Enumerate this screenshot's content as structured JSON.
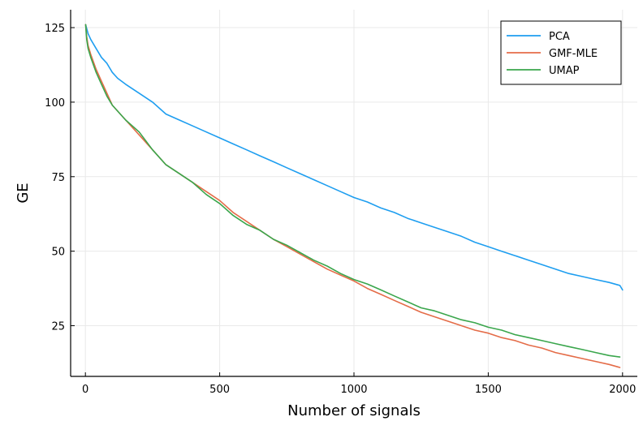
{
  "chart_data": {
    "type": "line",
    "title": "",
    "xlabel": "Number of signals",
    "ylabel": "GE",
    "xlim": [
      -55,
      2055
    ],
    "ylim": [
      8,
      131
    ],
    "xticks": [
      0,
      500,
      1000,
      1500,
      2000
    ],
    "yticks": [
      25,
      50,
      75,
      100,
      125
    ],
    "xtick_labels": [
      "0",
      "500",
      "1000",
      "1500",
      "2000"
    ],
    "ytick_labels": [
      "25",
      "50",
      "75",
      "100",
      "125"
    ],
    "grid": true,
    "legend_position": "top-right",
    "series": [
      {
        "name": "PCA",
        "color": "#1e9ef0",
        "x": [
          1,
          10,
          20,
          40,
          60,
          80,
          100,
          120,
          150,
          200,
          250,
          300,
          350,
          400,
          450,
          500,
          550,
          600,
          650,
          700,
          750,
          800,
          850,
          900,
          950,
          1000,
          1050,
          1100,
          1150,
          1200,
          1250,
          1300,
          1350,
          1400,
          1450,
          1500,
          1550,
          1600,
          1650,
          1700,
          1750,
          1800,
          1850,
          1900,
          1950,
          1990,
          2000
        ],
        "y": [
          126,
          123,
          121,
          118,
          115,
          113,
          110,
          108,
          106,
          103,
          100,
          96,
          94,
          92,
          90,
          88,
          86,
          84,
          82,
          80,
          78,
          76,
          74,
          72,
          70,
          68,
          66.5,
          64.5,
          63,
          61,
          59.5,
          58,
          56.5,
          55,
          53,
          51.5,
          50,
          48.5,
          47,
          45.5,
          44,
          42.5,
          41.5,
          40.5,
          39.5,
          38.5,
          37
        ]
      },
      {
        "name": "GMF-MLE",
        "color": "#e46c48",
        "x": [
          1,
          5,
          10,
          20,
          40,
          60,
          80,
          100,
          150,
          200,
          250,
          300,
          350,
          400,
          450,
          500,
          550,
          600,
          650,
          700,
          750,
          800,
          850,
          900,
          950,
          1000,
          1050,
          1100,
          1150,
          1200,
          1250,
          1300,
          1350,
          1400,
          1450,
          1500,
          1550,
          1600,
          1650,
          1700,
          1750,
          1800,
          1850,
          1900,
          1950,
          1990
        ],
        "y": [
          126,
          122,
          119,
          116,
          111,
          107,
          103,
          99,
          94,
          89,
          84,
          79,
          76,
          73,
          70,
          67,
          63,
          60,
          57,
          54,
          51.5,
          49,
          46.5,
          44,
          42,
          40,
          37.5,
          35.5,
          33.5,
          31.5,
          29.5,
          28,
          26.5,
          25,
          23.5,
          22.5,
          21,
          20,
          18.5,
          17.5,
          16,
          15,
          14,
          13,
          12,
          11
        ]
      },
      {
        "name": "UMAP",
        "color": "#3aa64c",
        "x": [
          1,
          5,
          10,
          20,
          40,
          60,
          80,
          100,
          150,
          200,
          250,
          300,
          350,
          400,
          450,
          500,
          550,
          600,
          650,
          700,
          750,
          800,
          850,
          900,
          950,
          1000,
          1050,
          1100,
          1150,
          1200,
          1250,
          1300,
          1350,
          1400,
          1450,
          1500,
          1550,
          1600,
          1650,
          1700,
          1750,
          1800,
          1850,
          1900,
          1950,
          1990
        ],
        "y": [
          126,
          121,
          118,
          115,
          110,
          106,
          102,
          99,
          94,
          90,
          84,
          79,
          76,
          73,
          69,
          66,
          62,
          59,
          57,
          54,
          52,
          49.5,
          47,
          45,
          42.5,
          40.5,
          39,
          37,
          35,
          33,
          31,
          30,
          28.5,
          27,
          26,
          24.5,
          23.5,
          22,
          21,
          20,
          19,
          18,
          17,
          16,
          15,
          14.5
        ]
      }
    ]
  }
}
